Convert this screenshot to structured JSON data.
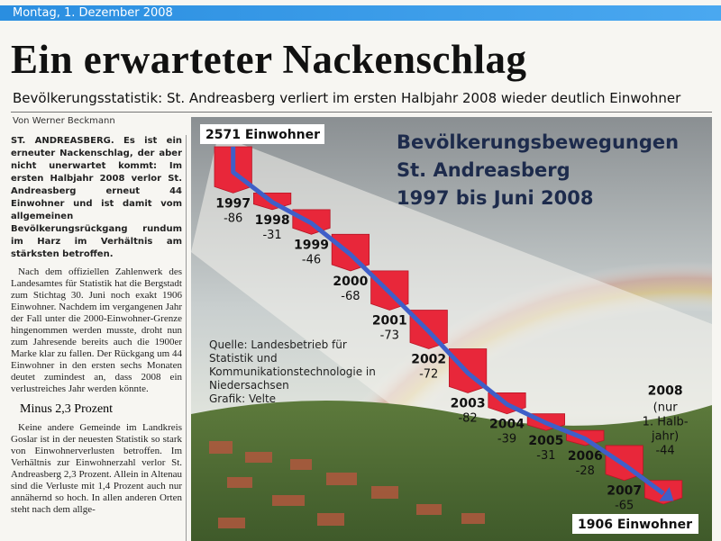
{
  "header": {
    "date": "Montag, 1. Dezember 2008"
  },
  "headline": "Ein erwarteter Nackenschlag",
  "subtitle": "Bevölkerungsstatistik: St. Andreasberg verliert im ersten Halbjahr 2008 wieder deutlich Einwohner",
  "byline": "Von Werner Beckmann",
  "article": {
    "lead": "ST. ANDREASBERG. Es ist ein erneuter Nackenschlag, der aber nicht unerwartet kommt: Im ersten Halbjahr 2008 verlor St. Andreasberg erneut 44 Einwohner und ist damit vom allgemeinen Bevölkerungsrückgang rundum im Harz im Verhältnis am stärksten betroffen.",
    "paragraphs": [
      "Nach dem offiziellen Zahlenwerk des Landesamtes für Statistik hat die Bergstadt zum Stichtag 30. Juni noch exakt 1906 Einwohner. Nachdem im vergangenen Jahr der Fall unter die 2000-Einwohner-Grenze hingenommen werden musste, droht nun zum Jahresende bereits auch die 1900er Marke klar zu fallen. Der Rückgang um 44 Einwohner in den ersten sechs Monaten deutet zumindest an, dass 2008 ein verlustreiches Jahr werden könnte."
    ],
    "subheading": "Minus 2,3 Prozent",
    "paragraphs2": [
      "Keine andere Gemeinde im Landkreis Goslar ist in der neuesten Statistik so stark von Einwohnerverlusten betroffen. Im Verhältnis zur Einwohnerzahl verlor St. Andreasberg 2,3 Prozent. Allein in Altenau sind die Verluste mit 1,4 Prozent auch nur annähernd so hoch. In allen anderen Orten steht nach dem allge-"
    ]
  },
  "chart_data": {
    "type": "waterfall",
    "title": [
      "Bevölkerungsbewegungen",
      "St. Andreasberg",
      "1997 bis Juni 2008"
    ],
    "start": {
      "value": 2571,
      "label": "2571 Einwohner"
    },
    "end": {
      "value": 1906,
      "label": "1906 Einwohner"
    },
    "categories": [
      "1997",
      "1998",
      "1999",
      "2000",
      "2001",
      "2002",
      "2003",
      "2004",
      "2005",
      "2006",
      "2007",
      "2008"
    ],
    "values": [
      -86,
      -31,
      -46,
      -68,
      -73,
      -72,
      -82,
      -39,
      -31,
      -28,
      -65,
      -44
    ],
    "note": [
      "(nur",
      "1. Halb-",
      "jahr)"
    ],
    "color": "#e8273a",
    "trend_color": "#3f5fc8",
    "source": "Quelle: Landesbetrieb für Statistik und Kommunikationstechnologie in Niedersachsen",
    "credit": "Grafik: Velte"
  }
}
